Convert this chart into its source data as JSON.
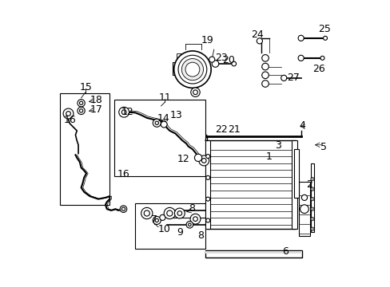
{
  "bg_color": "#ffffff",
  "line_color": "#000000",
  "fig_width": 4.89,
  "fig_height": 3.6,
  "dpi": 100,
  "font_size": 9
}
